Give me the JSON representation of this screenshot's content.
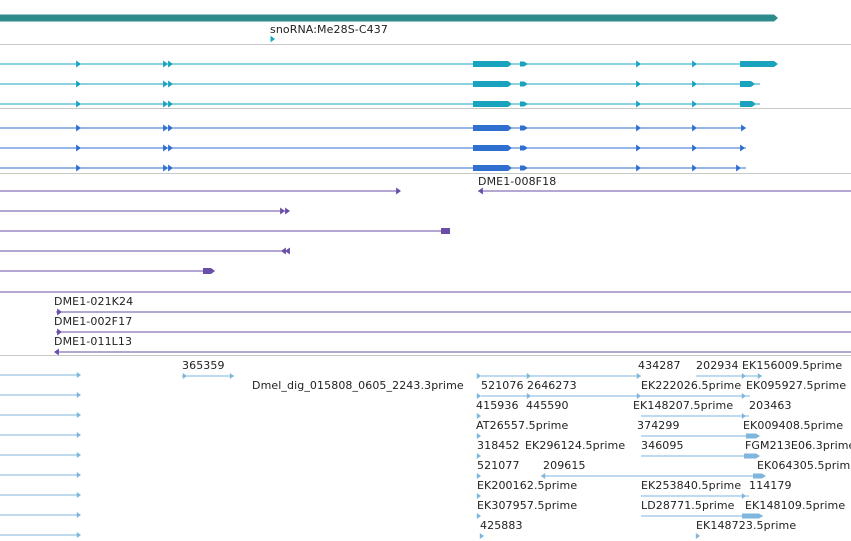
{
  "colors": {
    "background": "#ffffff",
    "separator": "#c8c8c8",
    "gene_span": "#2e8b8b",
    "transcript_teal": "#1aa3be",
    "transcript_blue": "#2f6fd0",
    "clone_purple": "#6a4fa8",
    "est_light": "#7fb6dc",
    "label_text": "#222222"
  },
  "labels": {
    "snorna": "snoRNA:Me28S-C437",
    "clone_008f18": "DME1-008F18",
    "clone_021k24": "DME1-021K24",
    "clone_002f17": "DME1-002F17",
    "clone_011l13": "DME1-011L13",
    "est_365359": "365359",
    "est_434287": "434287",
    "est_202934": "202934",
    "est_ek156009": "EK156009.5prime",
    "est_dmel_dig": "Dmel_dig_015808_0605_2243.3prime",
    "est_521076": "521076",
    "est_2646273": "2646273",
    "est_ek222026": "EK222026.5prime",
    "est_ek095927": "EK095927.5prime",
    "est_415936": "415936",
    "est_445590": "445590",
    "est_ek148207": "EK148207.5prime",
    "est_203463": "203463",
    "est_at26557": "AT26557.5prime",
    "est_374299": "374299",
    "est_ek009408": "EK009408.5prime",
    "est_318452": "318452",
    "est_ek296124": "EK296124.5prime",
    "est_346095": "346095",
    "est_fgm213e06": "FGM213E06.3prime",
    "est_521077": "521077",
    "est_209615": "209615",
    "est_ek064305": "EK064305.5prime",
    "est_ek200162": "EK200162.5prime",
    "est_ek253840": "EK253840.5prime",
    "est_114179": "114179",
    "est_ek307957": "EK307957.5prime",
    "est_ld28771": "LD28771.5prime",
    "est_ek148109": "EK148109.5prime",
    "est_425883": "425883",
    "est_ek148723": "EK148723.5prime"
  }
}
